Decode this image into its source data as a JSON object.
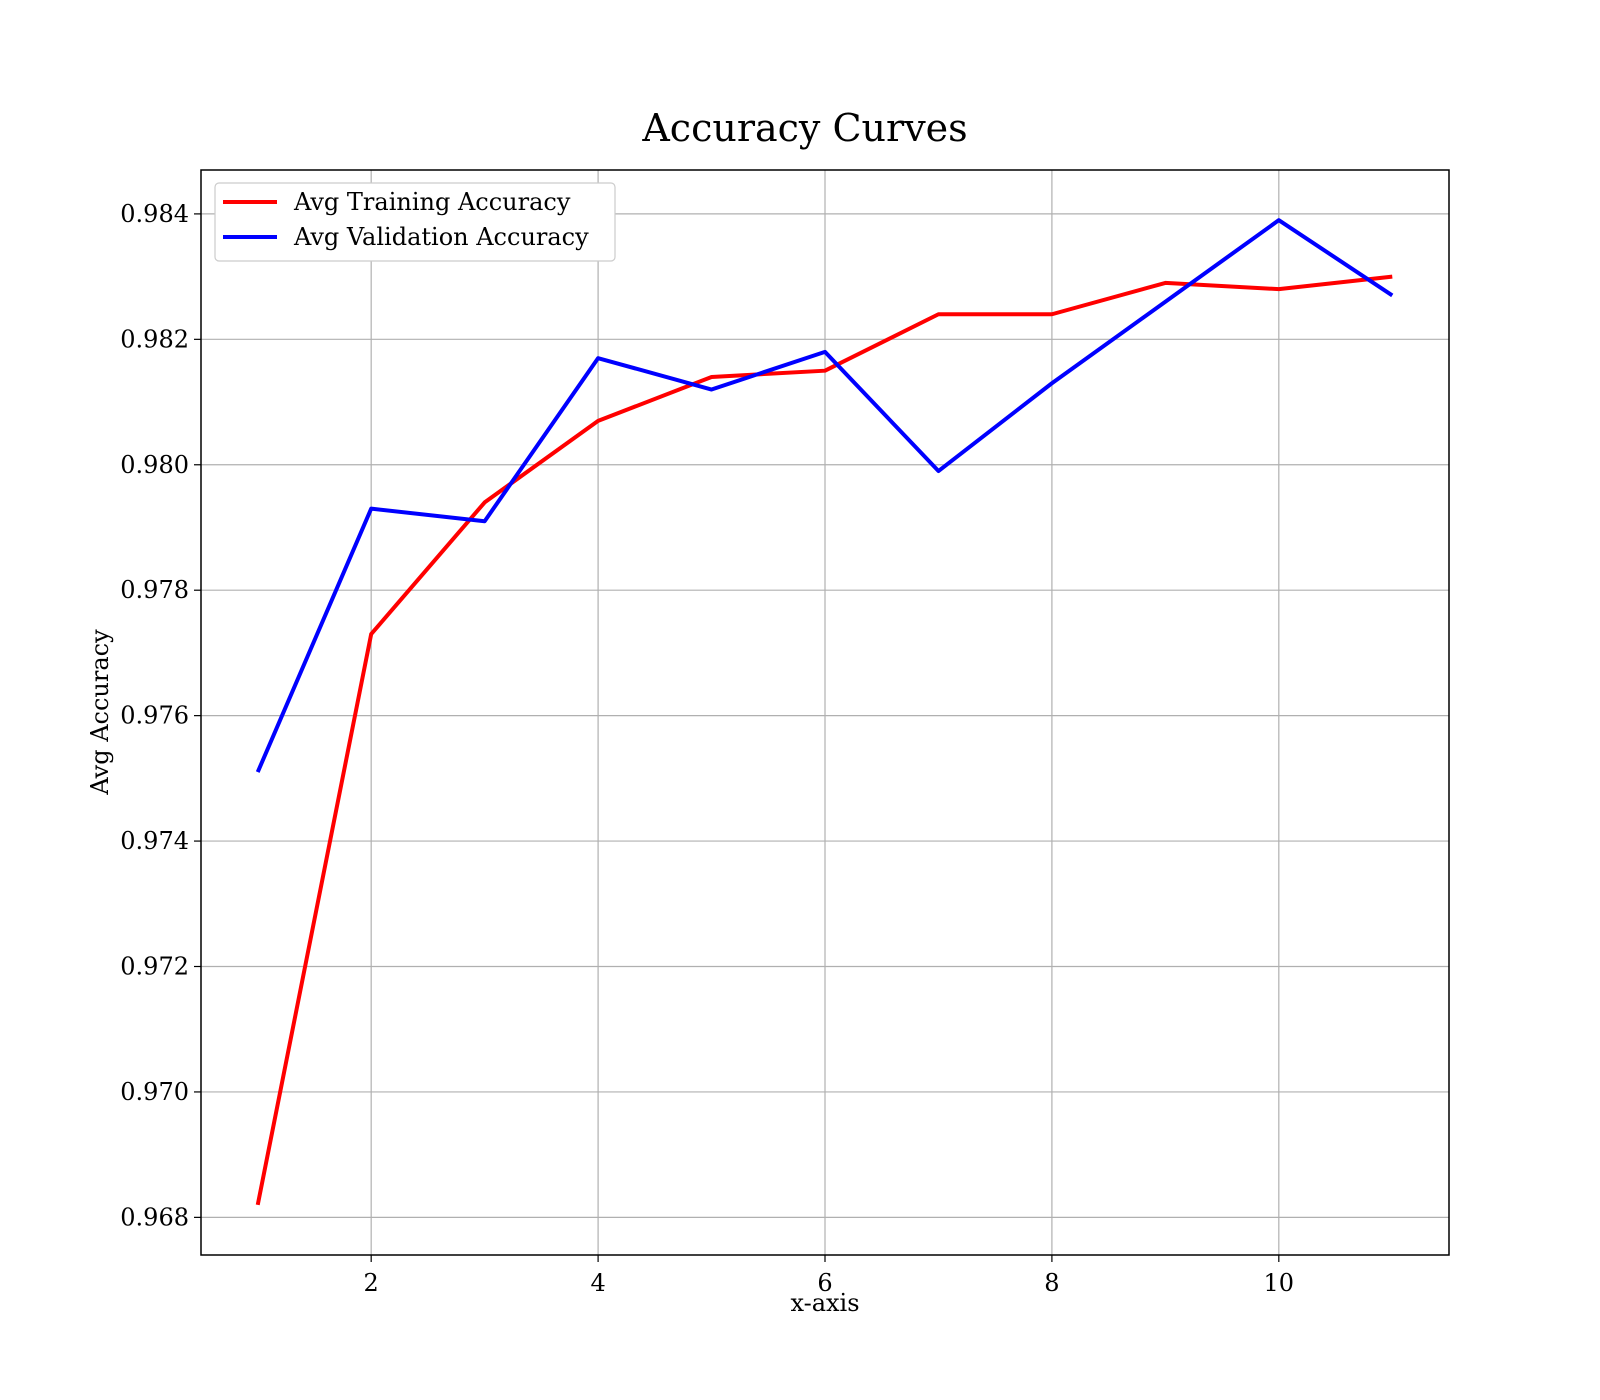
{
  "chart_data": {
    "type": "line",
    "title": "Accuracy Curves",
    "xlabel": "x-axis",
    "ylabel": "Avg Accuracy",
    "x": [
      1,
      2,
      3,
      4,
      5,
      6,
      7,
      8,
      9,
      10,
      11
    ],
    "xlim": [
      0.5,
      11.5
    ],
    "ylim": [
      0.9674,
      0.9847
    ],
    "xticks": [
      2,
      4,
      6,
      8,
      10
    ],
    "xtick_labels": [
      "2",
      "4",
      "6",
      "8",
      "10"
    ],
    "yticks": [
      0.968,
      0.97,
      0.972,
      0.974,
      0.976,
      0.978,
      0.98,
      0.982,
      0.984
    ],
    "ytick_labels": [
      "0.968",
      "0.970",
      "0.972",
      "0.974",
      "0.976",
      "0.978",
      "0.980",
      "0.982",
      "0.984"
    ],
    "grid": true,
    "legend_position": "top-left",
    "series": [
      {
        "name": "Avg Training Accuracy",
        "color": "#ff0000",
        "values": [
          0.9682,
          0.9773,
          0.9794,
          0.9807,
          0.9814,
          0.9815,
          0.9824,
          0.9824,
          0.9829,
          0.9828,
          0.983
        ]
      },
      {
        "name": "Avg Validation Accuracy",
        "color": "#0000ff",
        "values": [
          0.9751,
          0.9793,
          0.9791,
          0.9817,
          0.9812,
          0.9818,
          0.9799,
          0.9813,
          0.9826,
          0.9839,
          0.9827
        ]
      }
    ]
  }
}
